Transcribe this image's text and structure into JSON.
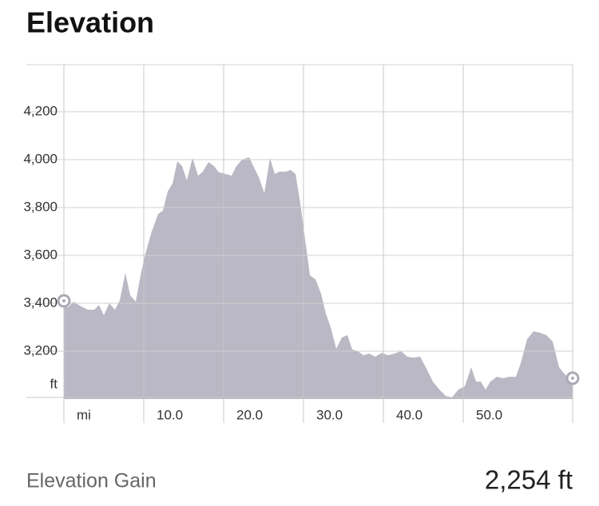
{
  "chart_data": {
    "type": "area",
    "title": "Elevation",
    "x_label": "mi",
    "y_label": "ft",
    "color": "#b9b8c4",
    "grid": true,
    "x": [
      0,
      0.5,
      1.2,
      2.0,
      3.0,
      3.8,
      4.4,
      5.0,
      5.7,
      6.4,
      7.0,
      7.7,
      8.3,
      9.0,
      9.6,
      10.2,
      11.0,
      11.8,
      12.4,
      13.0,
      13.6,
      14.2,
      14.8,
      15.4,
      16.1,
      16.8,
      17.4,
      18.1,
      18.8,
      19.4,
      20.2,
      21.0,
      21.6,
      22.3,
      23.2,
      23.8,
      24.4,
      25.1,
      25.8,
      26.4,
      27.0,
      27.8,
      28.4,
      29.0,
      29.6,
      30.2,
      30.8,
      31.5,
      32.2,
      32.8,
      33.4,
      34.1,
      34.8,
      35.5,
      36.1,
      36.8,
      37.5,
      38.2,
      39.0,
      39.8,
      40.6,
      41.4,
      42.2,
      43.0,
      43.8,
      44.6,
      45.4,
      46.2,
      47.0,
      47.8,
      48.6,
      49.4,
      50.2,
      51.0,
      51.6,
      52.2,
      52.8,
      53.4,
      54.2,
      55.0,
      55.8,
      56.6,
      57.2,
      58.0,
      58.8,
      59.6,
      60.4,
      61.2,
      62.0,
      62.8,
      63.7
    ],
    "values": [
      3410,
      3383,
      3407,
      3390,
      3373,
      3373,
      3393,
      3350,
      3400,
      3373,
      3413,
      3527,
      3433,
      3407,
      3517,
      3607,
      3700,
      3773,
      3787,
      3867,
      3900,
      3993,
      3973,
      3913,
      4007,
      3933,
      3950,
      3990,
      3973,
      3947,
      3940,
      3933,
      3973,
      4000,
      4010,
      3967,
      3927,
      3860,
      4007,
      3940,
      3950,
      3950,
      3957,
      3940,
      3817,
      3667,
      3517,
      3500,
      3440,
      3357,
      3300,
      3210,
      3257,
      3267,
      3207,
      3200,
      3183,
      3190,
      3177,
      3193,
      3183,
      3190,
      3200,
      3177,
      3173,
      3177,
      3127,
      3073,
      3040,
      3013,
      3007,
      3040,
      3053,
      3133,
      3073,
      3073,
      3040,
      3073,
      3093,
      3087,
      3093,
      3093,
      3150,
      3250,
      3283,
      3277,
      3267,
      3240,
      3133,
      3100,
      3087
    ],
    "xlim": [
      0,
      63.7
    ],
    "ylim": [
      3000,
      4400
    ],
    "xticks": [
      {
        "value": 10,
        "label": "10.0"
      },
      {
        "value": 20,
        "label": "20.0"
      },
      {
        "value": 30,
        "label": "30.0"
      },
      {
        "value": 40,
        "label": "40.0"
      },
      {
        "value": 50,
        "label": "50.0"
      }
    ],
    "yticks": [
      {
        "value": 3200,
        "label": "3,200"
      },
      {
        "value": 3400,
        "label": "3,400"
      },
      {
        "value": 3600,
        "label": "3,600"
      },
      {
        "value": 3800,
        "label": "3,800"
      },
      {
        "value": 4000,
        "label": "4,000"
      },
      {
        "value": 4200,
        "label": "4,200"
      }
    ]
  },
  "stats": {
    "label": "Elevation Gain",
    "value": "2,254 ft"
  }
}
